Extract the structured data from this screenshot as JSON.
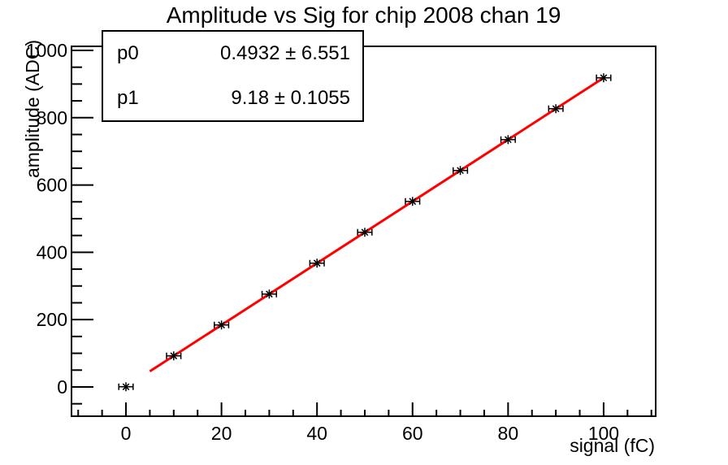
{
  "chart_data": {
    "type": "scatter",
    "title": "Amplitude vs Sig for chip 2008 chan 19",
    "xlabel": "signal (fC)",
    "ylabel": "amplitude (ADC)",
    "xlim": [
      -11.4,
      110.9
    ],
    "ylim": [
      -87,
      1012
    ],
    "x_major_ticks": [
      0,
      20,
      40,
      60,
      80,
      100
    ],
    "x_minor_step": 5,
    "y_major_ticks": [
      0,
      200,
      400,
      600,
      800,
      1000
    ],
    "y_minor_step": 50,
    "grid": false,
    "legend": null,
    "marker_style": "asterisk-with-x-error-bars",
    "points": {
      "x": [
        0,
        10,
        20,
        30,
        40,
        50,
        60,
        70,
        80,
        90,
        100
      ],
      "y": [
        0.5,
        92.3,
        184.1,
        275.9,
        367.7,
        459.5,
        551.3,
        643.1,
        734.9,
        826.7,
        918.5
      ],
      "x_err": 1.5
    },
    "fit": {
      "type": "linear",
      "p0": 0.4932,
      "p1": 9.18,
      "x_from": 5,
      "x_to": 100,
      "color": "#ff0000"
    },
    "colors": {
      "marker": "#000000",
      "axis": "#000000",
      "fit_line": "#ff0000",
      "background": "#ffffff"
    }
  },
  "stats": {
    "rows": [
      {
        "name": "p0",
        "value": "0.4932 ± 6.551"
      },
      {
        "name": "p1",
        "value": "9.18 ± 0.1055"
      }
    ]
  }
}
